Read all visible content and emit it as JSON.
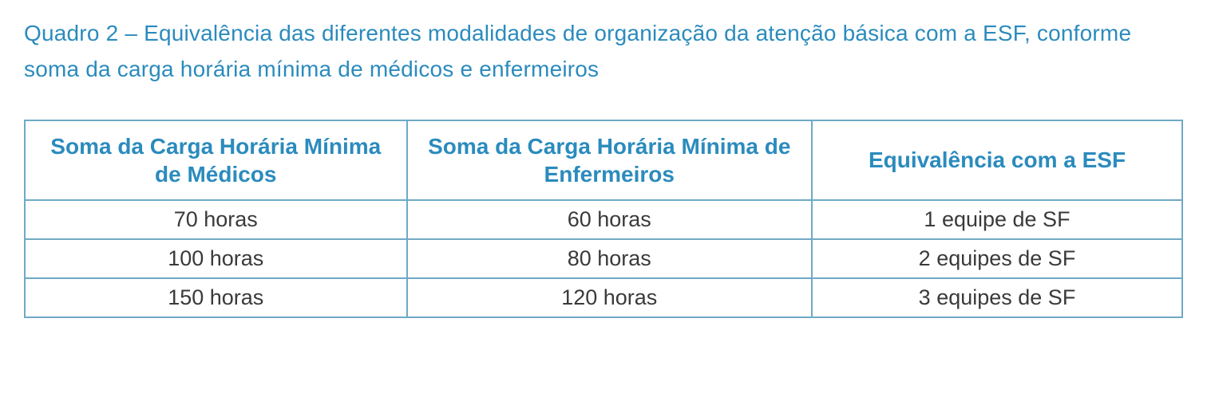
{
  "colors": {
    "brand_blue": "#2b8bbd",
    "border_blue": "#6fa9c5",
    "body_text": "#3a3a3a",
    "background": "#ffffff"
  },
  "caption": "Quadro 2 – Equivalência das diferentes modalidades de organização da atenção básica com a ESF, conforme soma da carga horária mínima de médicos e enfermeiros",
  "table": {
    "columns": [
      "Soma da Carga Horária Mínima de Médicos",
      "Soma da Carga Horária Mínima de Enfermeiros",
      "Equivalência com a ESF"
    ],
    "rows": [
      [
        "70 horas",
        "60 horas",
        "1 equipe de SF"
      ],
      [
        "100 horas",
        "80 horas",
        "2 equipes de SF"
      ],
      [
        "150 horas",
        "120 horas",
        "3 equipes de SF"
      ]
    ],
    "header_font_size": 28,
    "cell_font_size": 27,
    "border_width": 2
  }
}
